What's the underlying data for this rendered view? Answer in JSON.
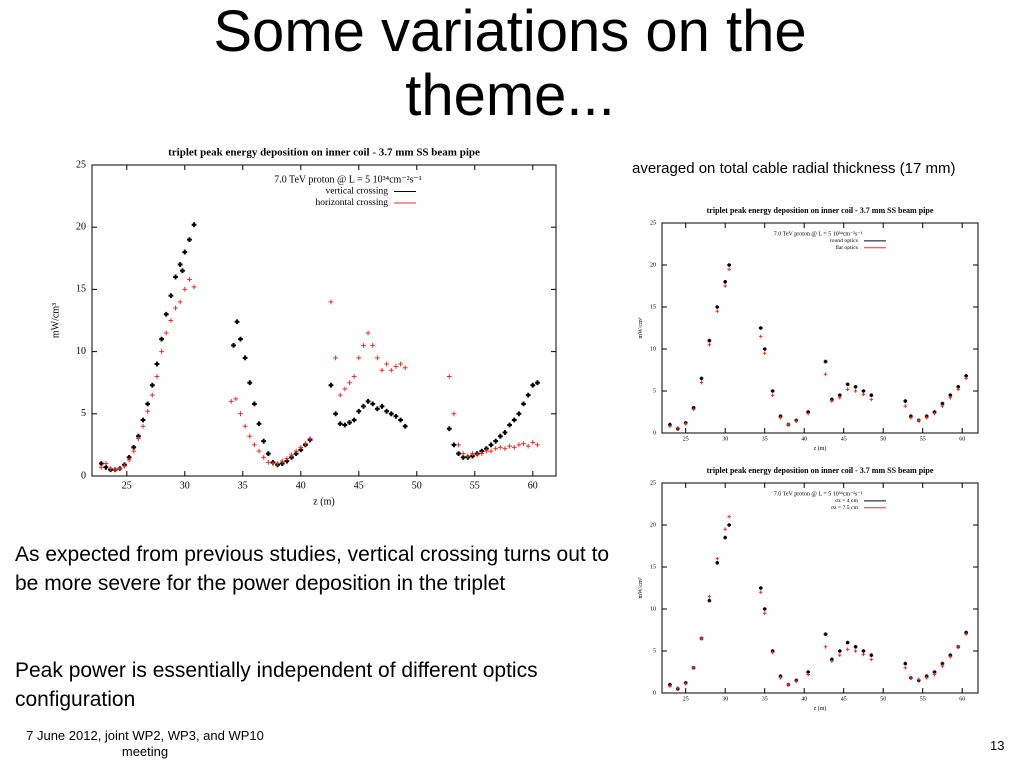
{
  "slide": {
    "title": "Some variations on the theme...",
    "note": "averaged on total cable radial thickness (17 mm)",
    "bullets": [
      "As expected from previous studies, vertical crossing turns out to be more severe for the power deposition in the triplet",
      "Peak power is essentially independent of different optics configuration"
    ],
    "footer": "7 June 2012, joint WP2, WP3, and WP10 meeting",
    "page_number": "13"
  },
  "chart_data": [
    {
      "type": "scatter",
      "title": "triplet peak energy deposition on inner coil - 3.7 mm SS beam pipe",
      "legend_title": "7.0 TeV proton @ L = 5 10³⁴cm⁻²s⁻¹",
      "xlabel": "z (m)",
      "ylabel": "mW/cm³",
      "xlim": [
        22,
        62
      ],
      "xticks": [
        25,
        30,
        35,
        40,
        45,
        50,
        55,
        60
      ],
      "ylim": [
        0,
        25
      ],
      "yticks": [
        0,
        5,
        10,
        15,
        20,
        25
      ],
      "series": [
        {
          "name": "vertical crossing",
          "color": "#000000",
          "x": [
            22.8,
            23.2,
            23.6,
            24,
            24.4,
            24.8,
            25.2,
            25.6,
            26,
            26.4,
            26.8,
            27.2,
            27.6,
            28,
            28.4,
            28.8,
            29.2,
            29.6,
            29.8,
            30,
            30.4,
            30.8,
            34.2,
            34.5,
            34.8,
            35.2,
            35.6,
            36,
            36.4,
            36.8,
            37.2,
            37.6,
            38,
            38.4,
            38.8,
            39.2,
            39.6,
            40,
            40.4,
            40.8,
            42.6,
            43,
            43.4,
            43.8,
            44.2,
            44.6,
            45,
            45.4,
            45.8,
            46.2,
            46.6,
            47,
            47.4,
            47.8,
            48.2,
            48.6,
            49,
            52.8,
            53.2,
            53.6,
            54,
            54.4,
            54.8,
            55.2,
            55.6,
            56,
            56.4,
            56.8,
            57.2,
            57.6,
            58,
            58.4,
            58.8,
            59.2,
            59.6,
            60,
            60.4
          ],
          "values": [
            1.0,
            0.7,
            0.5,
            0.5,
            0.6,
            0.9,
            1.5,
            2.3,
            3.2,
            4.5,
            5.8,
            7.3,
            9,
            11,
            13,
            14.5,
            16,
            17,
            16.5,
            18,
            19,
            20.2,
            10.5,
            12.4,
            11,
            9.5,
            7.5,
            5.8,
            4.2,
            2.8,
            1.8,
            1.1,
            0.9,
            1.0,
            1.2,
            1.5,
            1.8,
            2.1,
            2.5,
            2.9,
            7.3,
            5,
            4.2,
            4.1,
            4.3,
            4.5,
            5.2,
            5.6,
            6,
            5.8,
            5.4,
            5.6,
            5.2,
            5.0,
            4.8,
            4.5,
            4.0,
            3.8,
            2.5,
            1.8,
            1.5,
            1.5,
            1.6,
            1.8,
            2,
            2.2,
            2.5,
            2.8,
            3.2,
            3.5,
            4.1,
            4.5,
            5,
            5.8,
            6.5,
            7.3,
            7.5
          ]
        },
        {
          "name": "horizontal crossing",
          "color": "#e8302a",
          "x": [
            22.8,
            23.2,
            23.6,
            24,
            24.4,
            24.8,
            25.2,
            25.6,
            26,
            26.4,
            26.8,
            27.2,
            27.6,
            28,
            28.4,
            28.8,
            29.2,
            29.6,
            30,
            30.4,
            30.8,
            34,
            34.4,
            34.8,
            35.2,
            35.6,
            36,
            36.4,
            36.8,
            37.2,
            37.6,
            38,
            38.4,
            38.8,
            39.2,
            39.6,
            40,
            40.4,
            40.8,
            42.6,
            43,
            43.4,
            43.8,
            44.2,
            44.6,
            45,
            45.4,
            45.8,
            46.2,
            46.6,
            47,
            47.4,
            47.8,
            48.2,
            48.6,
            49,
            52.8,
            53.2,
            53.6,
            54,
            54.4,
            54.8,
            55.2,
            55.6,
            56,
            56.4,
            56.8,
            57.2,
            57.6,
            58,
            58.4,
            58.8,
            59.2,
            59.6,
            60,
            60.4
          ],
          "values": [
            0.7,
            1.0,
            0.6,
            0.5,
            0.6,
            0.8,
            1.3,
            2,
            3,
            4,
            5.2,
            6.5,
            8,
            10,
            11.5,
            12.5,
            13.5,
            14,
            15,
            15.8,
            15.2,
            6,
            6.2,
            5,
            4,
            3.2,
            2.5,
            2,
            1.5,
            1.1,
            1.0,
            1.0,
            1.2,
            1.4,
            1.7,
            2,
            2.3,
            2.6,
            3,
            14,
            9.5,
            6.5,
            7,
            7.5,
            8,
            9.5,
            10.5,
            11.5,
            10.5,
            9.5,
            8.5,
            9,
            8.5,
            8.8,
            9,
            8.7,
            8,
            5,
            2.5,
            1.8,
            1.6,
            1.8,
            1.7,
            1.8,
            2,
            2,
            2.2,
            2.3,
            2.2,
            2.4,
            2.3,
            2.5,
            2.6,
            2.4,
            2.7,
            2.5
          ]
        }
      ]
    },
    {
      "type": "scatter",
      "title": "triplet peak energy deposition on inner coil - 3.7 mm SS beam pipe",
      "legend_title": "7.0 TeV proton @ L = 5 10³⁴cm⁻²s⁻¹",
      "xlabel": "z (m)",
      "ylabel": "mW/cm³",
      "xlim": [
        22,
        62
      ],
      "xticks": [
        25,
        30,
        35,
        40,
        45,
        50,
        55,
        60
      ],
      "ylim": [
        0,
        25
      ],
      "yticks": [
        0,
        5,
        10,
        15,
        20,
        25
      ],
      "series": [
        {
          "name": "round optics",
          "color": "#000000",
          "x": [
            23,
            24,
            25,
            26,
            27,
            28,
            29,
            30,
            30.5,
            34.5,
            35,
            36,
            37,
            38,
            39,
            40.5,
            42.7,
            43.5,
            44.5,
            45.5,
            46.5,
            47.5,
            48.5,
            52.8,
            53.5,
            54.5,
            55.5,
            56.5,
            57.5,
            58.5,
            59.5,
            60.5
          ],
          "values": [
            1,
            0.5,
            1.2,
            3,
            6.5,
            11,
            15,
            18,
            20,
            12.5,
            10,
            5,
            2,
            1,
            1.5,
            2.5,
            8.5,
            4,
            4.5,
            5.8,
            5.5,
            5,
            4.5,
            3.8,
            2,
            1.5,
            2,
            2.5,
            3.5,
            4.5,
            5.5,
            6.8
          ]
        },
        {
          "name": "flat optics",
          "color": "#e8302a",
          "x": [
            23,
            24,
            25,
            26,
            27,
            28,
            29,
            30,
            30.5,
            34.5,
            35,
            36,
            37,
            38,
            39,
            40.5,
            42.7,
            43.5,
            44.5,
            45.5,
            46.5,
            47.5,
            48.5,
            52.8,
            53.5,
            54.5,
            55.5,
            56.5,
            57.5,
            58.5,
            59.5,
            60.5
          ],
          "values": [
            0.8,
            0.6,
            1.1,
            2.8,
            6,
            10.5,
            14.5,
            17.5,
            19.5,
            11.5,
            9.5,
            4.5,
            1.8,
            1,
            1.4,
            2.3,
            7,
            3.8,
            4.2,
            5.2,
            5,
            4.6,
            4,
            3.2,
            1.8,
            1.5,
            1.8,
            2.3,
            3.2,
            4.2,
            5.2,
            6.5
          ]
        }
      ]
    },
    {
      "type": "scatter",
      "title": "triplet peak energy deposition on inner coil - 3.7 mm SS beam pipe",
      "legend_title": "7.0 TeV proton @ L = 5 10³⁴cm⁻²s⁻¹",
      "xlabel": "z (m)",
      "ylabel": "mW/cm³",
      "xlim": [
        22,
        62
      ],
      "xticks": [
        25,
        30,
        35,
        40,
        45,
        50,
        55,
        60
      ],
      "ylim": [
        0,
        25
      ],
      "yticks": [
        0,
        5,
        10,
        15,
        20,
        25
      ],
      "series": [
        {
          "name": "σz = 4 cm",
          "color": "#000000",
          "x": [
            23,
            24,
            25,
            26,
            27,
            28,
            29,
            30,
            30.5,
            34.5,
            35,
            36,
            37,
            38,
            39,
            40.5,
            42.7,
            43.5,
            44.5,
            45.5,
            46.5,
            47.5,
            48.5,
            52.8,
            53.5,
            54.5,
            55.5,
            56.5,
            57.5,
            58.5,
            59.5,
            60.5
          ],
          "values": [
            1,
            0.5,
            1.2,
            3,
            6.5,
            11,
            15.5,
            18.5,
            20,
            12.5,
            10,
            5,
            2,
            1,
            1.5,
            2.5,
            7,
            4,
            5,
            6,
            5.5,
            5,
            4.5,
            3.5,
            1.8,
            1.5,
            2,
            2.5,
            3.5,
            4.5,
            5.5,
            7.2
          ]
        },
        {
          "name": "σz = 7.5 cm",
          "color": "#e8302a",
          "x": [
            23,
            24,
            25,
            26,
            27,
            28,
            29,
            30,
            30.5,
            34.5,
            35,
            36,
            37,
            38,
            39,
            40.5,
            42.7,
            43.5,
            44.5,
            45.5,
            46.5,
            47.5,
            48.5,
            52.8,
            53.5,
            54.5,
            55.5,
            56.5,
            57.5,
            58.5,
            59.5,
            60.5
          ],
          "values": [
            0.8,
            0.6,
            1.1,
            3,
            6.5,
            11.5,
            16,
            19.5,
            21,
            12,
            9.5,
            4.8,
            1.8,
            1,
            1.4,
            2.2,
            5.5,
            3.8,
            4.5,
            5.2,
            5,
            4.6,
            4,
            3,
            1.8,
            1.6,
            1.8,
            2.2,
            3.2,
            4.3,
            5.5,
            7
          ]
        }
      ]
    }
  ]
}
